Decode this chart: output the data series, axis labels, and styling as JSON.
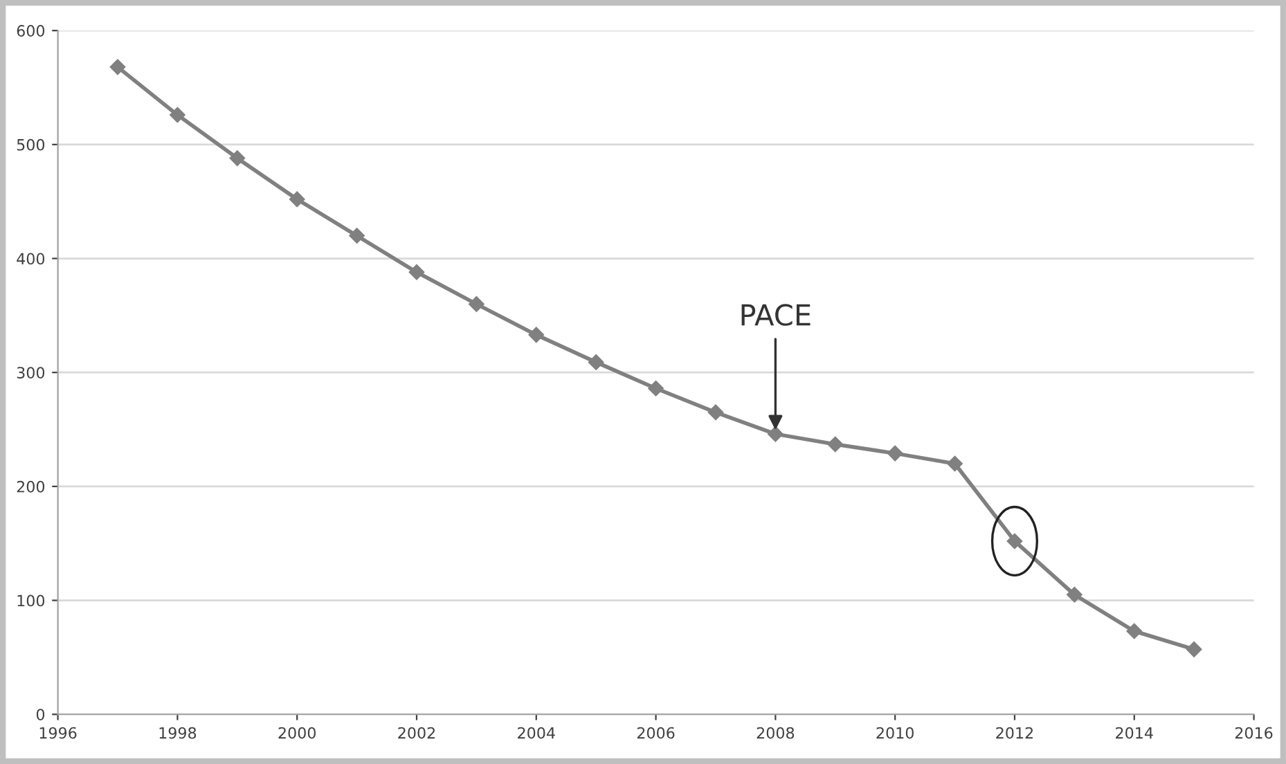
{
  "chart_data": {
    "type": "line",
    "x": [
      1997,
      1998,
      1999,
      2000,
      2001,
      2002,
      2003,
      2004,
      2005,
      2006,
      2007,
      2008,
      2009,
      2010,
      2011,
      2012,
      2013,
      2014,
      2015
    ],
    "values": [
      568,
      526,
      488,
      452,
      420,
      388,
      360,
      333,
      309,
      286,
      265,
      246,
      237,
      229,
      220,
      152,
      105,
      73,
      57
    ],
    "color": "#808080",
    "marker": "diamond",
    "line_style": "solid",
    "grid": "y",
    "xlim": [
      1996,
      2016
    ],
    "xticks": [
      1996,
      1998,
      2000,
      2002,
      2004,
      2006,
      2008,
      2010,
      2012,
      2014,
      2016
    ],
    "ylim": [
      0,
      600
    ],
    "yticks": [
      0,
      100,
      200,
      300,
      400,
      500,
      600
    ],
    "annotations": [
      {
        "text": "PACE",
        "x": 2008,
        "y": 246
      }
    ]
  }
}
